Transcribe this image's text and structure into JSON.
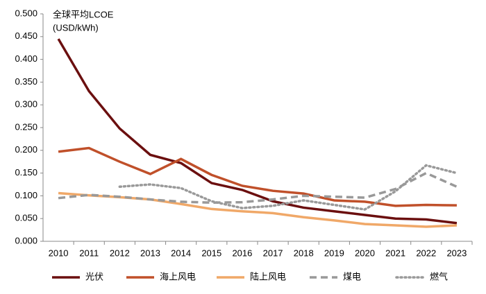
{
  "chart_data": {
    "type": "line",
    "title": "全球平均LCOE",
    "unit": "(USD/kWh)",
    "categories": [
      "2010",
      "2011",
      "2012",
      "2013",
      "2014",
      "2015",
      "2016",
      "2017",
      "2018",
      "2019",
      "2020",
      "2021",
      "2022",
      "2023"
    ],
    "series": [
      {
        "name": "光伏",
        "color": "#6b0f0f",
        "line_style": "solid",
        "values": [
          0.445,
          0.33,
          0.248,
          0.19,
          0.172,
          0.128,
          0.113,
          0.088,
          0.074,
          0.066,
          0.058,
          0.05,
          0.048,
          0.04
        ]
      },
      {
        "name": "海上风电",
        "color": "#c0502a",
        "line_style": "solid",
        "values": [
          0.197,
          0.205,
          0.175,
          0.148,
          0.181,
          0.146,
          0.122,
          0.111,
          0.105,
          0.09,
          0.087,
          0.078,
          0.08,
          0.079
        ]
      },
      {
        "name": "陆上风电",
        "color": "#f0a868",
        "line_style": "solid",
        "values": [
          0.106,
          0.101,
          0.097,
          0.092,
          0.082,
          0.071,
          0.066,
          0.062,
          0.053,
          0.046,
          0.038,
          0.035,
          0.032,
          0.035
        ]
      },
      {
        "name": "煤电",
        "color": "#999999",
        "line_style": "dashed",
        "values": [
          0.095,
          0.102,
          0.098,
          0.092,
          0.087,
          0.085,
          0.086,
          0.092,
          0.1,
          0.098,
          0.096,
          0.115,
          0.15,
          0.12
        ]
      },
      {
        "name": "燃气",
        "color": "#999999",
        "line_style": "dotted",
        "values": [
          null,
          null,
          0.12,
          0.125,
          0.117,
          0.088,
          0.073,
          0.078,
          0.09,
          0.08,
          0.07,
          0.11,
          0.167,
          0.15
        ]
      }
    ],
    "ylim": [
      0,
      0.5
    ],
    "yticks": [
      {
        "value": 0,
        "label": "0.000"
      },
      {
        "value": 0.05,
        "label": "0.050"
      },
      {
        "value": 0.1,
        "label": "0.100"
      },
      {
        "value": 0.15,
        "label": "0.150"
      },
      {
        "value": 0.2,
        "label": "0.200"
      },
      {
        "value": 0.25,
        "label": "0.250"
      },
      {
        "value": 0.3,
        "label": "0.300"
      },
      {
        "value": 0.35,
        "label": "0.350"
      },
      {
        "value": 0.4,
        "label": "0.400"
      },
      {
        "value": 0.45,
        "label": "0.450"
      },
      {
        "value": 0.5,
        "label": "0.500"
      }
    ],
    "grid": false,
    "legend": "bottom"
  }
}
